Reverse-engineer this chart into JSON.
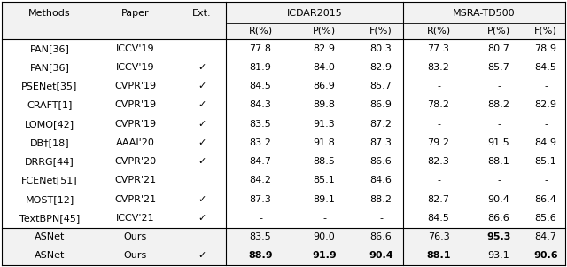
{
  "rows": [
    [
      "PAN[36]",
      "ICCV'19",
      "",
      "77.8",
      "82.9",
      "80.3",
      "77.3",
      "80.7",
      "78.9"
    ],
    [
      "PAN[36]",
      "ICCV'19",
      "✓",
      "81.9",
      "84.0",
      "82.9",
      "83.2",
      "85.7",
      "84.5"
    ],
    [
      "PSENet[35]",
      "CVPR'19",
      "✓",
      "84.5",
      "86.9",
      "85.7",
      "-",
      "-",
      "-"
    ],
    [
      "CRAFT[1]",
      "CVPR'19",
      "✓",
      "84.3",
      "89.8",
      "86.9",
      "78.2",
      "88.2",
      "82.9"
    ],
    [
      "LOMO[42]",
      "CVPR'19",
      "✓",
      "83.5",
      "91.3",
      "87.2",
      "-",
      "-",
      "-"
    ],
    [
      "DB†[18]",
      "AAAI'20",
      "✓",
      "83.2",
      "91.8",
      "87.3",
      "79.2",
      "91.5",
      "84.9"
    ],
    [
      "DRRG[44]",
      "CVPR'20",
      "✓",
      "84.7",
      "88.5",
      "86.6",
      "82.3",
      "88.1",
      "85.1"
    ],
    [
      "FCENet[51]",
      "CVPR'21",
      "",
      "84.2",
      "85.1",
      "84.6",
      "-",
      "-",
      "-"
    ],
    [
      "MOST[12]",
      "CVPR'21",
      "✓",
      "87.3",
      "89.1",
      "88.2",
      "82.7",
      "90.4",
      "86.4"
    ],
    [
      "TextBPN[45]",
      "ICCV'21",
      "✓",
      "-",
      "-",
      "-",
      "84.5",
      "86.6",
      "85.6"
    ]
  ],
  "bottom_rows": [
    [
      "ASNet",
      "Ours",
      "",
      "83.5",
      "90.0",
      "86.6",
      "76.3",
      "95.3",
      "84.7"
    ],
    [
      "ASNet",
      "Ours",
      "✓",
      "88.9",
      "91.9",
      "90.4",
      "88.1",
      "93.1",
      "90.6"
    ]
  ],
  "bold_bottom": [
    [
      false,
      false,
      false,
      false,
      false,
      false,
      false,
      true,
      false
    ],
    [
      false,
      false,
      false,
      true,
      true,
      true,
      true,
      false,
      true
    ]
  ],
  "bg_color": "#ffffff",
  "figsize": [
    6.4,
    3.01
  ],
  "dpi": 100
}
